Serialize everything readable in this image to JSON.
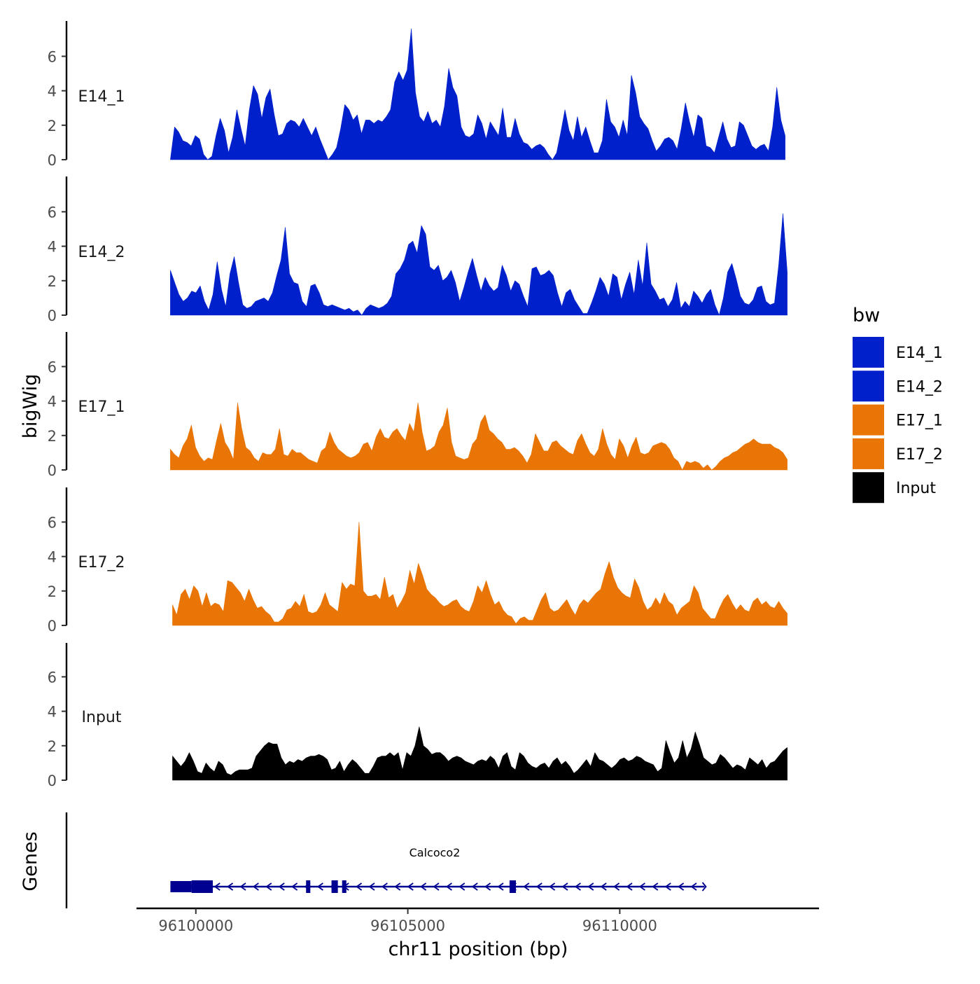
{
  "chart_data": {
    "type": "area",
    "title": "",
    "xlabel": "chr11 position (bp)",
    "ylabel": "bigWig",
    "genes_label": "Genes",
    "xlim": [
      96098600,
      96114700
    ],
    "ylim": [
      0,
      7.7
    ],
    "x_ticks": [
      {
        "value": 96100000,
        "label": "96100000"
      },
      {
        "value": 96105000,
        "label": "96105000"
      },
      {
        "value": 96110000,
        "label": "96110000"
      }
    ],
    "y_ticks": [
      {
        "value": 0,
        "label": "0"
      },
      {
        "value": 2,
        "label": "2"
      },
      {
        "value": 4,
        "label": "4"
      },
      {
        "value": 6,
        "label": "6"
      }
    ],
    "legend": {
      "title": "bw",
      "entries": [
        {
          "label": "E14_1",
          "color": "#0020cc"
        },
        {
          "label": "E14_2",
          "color": "#0020cc"
        },
        {
          "label": "E17_1",
          "color": "#e87505"
        },
        {
          "label": "E17_2",
          "color": "#e87505"
        },
        {
          "label": "Input",
          "color": "#000000"
        }
      ]
    },
    "series": [
      {
        "name": "E14_1",
        "color": "#0020cc",
        "x_start": 96099400,
        "x_end": 96113900,
        "values": [
          0.0,
          1.9,
          1.6,
          1.1,
          1.0,
          0.8,
          1.4,
          1.2,
          0.3,
          0.0,
          0.2,
          1.4,
          2.4,
          1.7,
          0.4,
          1.3,
          2.9,
          1.8,
          0.8,
          2.9,
          4.3,
          3.8,
          2.4,
          3.6,
          4.1,
          2.6,
          1.4,
          1.5,
          2.1,
          2.3,
          2.2,
          1.9,
          2.4,
          1.9,
          1.4,
          1.9,
          1.2,
          0.6,
          0.0,
          0.3,
          0.7,
          1.8,
          3.2,
          2.9,
          2.3,
          2.6,
          1.5,
          2.3,
          2.3,
          2.1,
          2.3,
          2.2,
          2.5,
          2.9,
          4.5,
          5.1,
          4.6,
          5.2,
          7.6,
          3.9,
          2.5,
          2.2,
          2.8,
          2.1,
          2.3,
          1.9,
          3.1,
          5.3,
          4.2,
          3.7,
          1.9,
          1.4,
          1.3,
          1.5,
          2.6,
          2.1,
          1.2,
          2.2,
          1.8,
          1.4,
          3.0,
          1.3,
          1.3,
          2.4,
          1.5,
          1.0,
          0.9,
          0.6,
          0.8,
          0.9,
          0.7,
          0.3,
          0.0,
          0.4,
          1.6,
          2.9,
          1.7,
          1.1,
          2.5,
          1.3,
          1.9,
          1.1,
          0.4,
          0.4,
          1.1,
          3.5,
          2.2,
          1.9,
          1.3,
          2.3,
          1.4,
          4.9,
          3.9,
          2.5,
          2.1,
          1.8,
          1.1,
          0.5,
          0.8,
          1.2,
          1.3,
          1.1,
          0.6,
          1.8,
          3.3,
          2.2,
          1.3,
          2.6,
          2.4,
          0.8,
          0.7,
          0.4,
          1.3,
          2.2,
          1.2,
          0.7,
          0.8,
          2.2,
          2.0,
          1.4,
          0.8,
          0.6,
          0.8,
          0.9,
          0.5,
          1.9,
          4.2,
          2.3,
          1.4
        ]
      },
      {
        "name": "E14_2",
        "color": "#0020cc",
        "x_start": 96099400,
        "x_end": 96113950,
        "values": [
          2.6,
          1.9,
          1.2,
          0.8,
          1.0,
          1.4,
          1.3,
          1.7,
          0.8,
          0.3,
          1.2,
          3.1,
          1.5,
          0.5,
          2.4,
          3.4,
          1.9,
          0.6,
          0.4,
          0.5,
          0.8,
          0.9,
          1.0,
          0.8,
          1.3,
          2.3,
          3.2,
          5.1,
          2.4,
          1.9,
          1.8,
          0.8,
          0.5,
          1.7,
          1.8,
          1.3,
          0.6,
          0.5,
          0.6,
          0.5,
          0.4,
          0.3,
          0.4,
          0.2,
          0.3,
          0.0,
          0.4,
          0.6,
          0.5,
          0.4,
          0.5,
          0.7,
          1.1,
          2.4,
          2.7,
          3.2,
          4.1,
          4.3,
          3.6,
          5.2,
          4.7,
          2.8,
          2.6,
          2.9,
          2.0,
          2.2,
          2.6,
          1.9,
          0.8,
          1.6,
          2.5,
          3.3,
          2.3,
          1.4,
          2.2,
          1.7,
          1.4,
          1.6,
          2.9,
          2.3,
          1.4,
          2.0,
          1.8,
          1.1,
          0.5,
          2.7,
          2.8,
          2.3,
          2.4,
          2.6,
          2.3,
          1.3,
          0.5,
          1.3,
          1.5,
          0.9,
          0.5,
          0.1,
          0.1,
          0.7,
          1.4,
          2.2,
          1.8,
          1.1,
          2.4,
          2.2,
          0.9,
          1.8,
          2.5,
          1.2,
          3.2,
          1.7,
          4.2,
          1.8,
          1.4,
          0.9,
          1.0,
          0.5,
          0.9,
          1.9,
          0.4,
          0.8,
          0.5,
          1.4,
          1.1,
          0.7,
          1.2,
          1.5,
          0.6,
          0.0,
          1.0,
          2.5,
          3.0,
          2.1,
          1.1,
          0.7,
          0.6,
          0.9,
          1.6,
          1.7,
          0.8,
          0.6,
          0.7,
          2.9,
          5.9,
          2.5
        ]
      },
      {
        "name": "E17_1",
        "color": "#e87505",
        "x_start": 96099400,
        "x_end": 96113950,
        "values": [
          1.2,
          0.9,
          0.7,
          1.4,
          1.8,
          2.6,
          1.3,
          0.8,
          0.5,
          0.7,
          0.6,
          1.7,
          2.7,
          1.6,
          1.2,
          0.6,
          3.9,
          2.4,
          1.3,
          1.1,
          0.7,
          0.5,
          1.0,
          0.9,
          0.9,
          1.2,
          2.4,
          0.9,
          0.8,
          1.2,
          1.0,
          1.0,
          0.8,
          0.6,
          0.5,
          0.4,
          1.1,
          1.3,
          2.2,
          1.6,
          1.2,
          1.0,
          0.8,
          0.7,
          0.8,
          1.0,
          1.5,
          1.6,
          1.1,
          1.9,
          2.4,
          1.9,
          1.8,
          2.2,
          2.4,
          2.0,
          1.7,
          2.7,
          2.2,
          3.9,
          2.2,
          1.1,
          1.2,
          1.4,
          2.2,
          2.6,
          3.6,
          1.6,
          0.8,
          0.7,
          0.6,
          0.7,
          1.5,
          1.8,
          2.8,
          3.2,
          2.3,
          2.1,
          1.8,
          1.6,
          1.2,
          1.2,
          1.3,
          1.1,
          0.8,
          0.4,
          0.9,
          2.1,
          1.6,
          1.1,
          1.1,
          1.6,
          1.7,
          1.4,
          1.2,
          1.0,
          0.9,
          1.7,
          2.1,
          1.5,
          1.0,
          0.8,
          1.2,
          2.4,
          1.5,
          0.9,
          0.6,
          1.8,
          1.4,
          0.7,
          1.4,
          1.9,
          1.0,
          0.9,
          1.0,
          1.4,
          1.5,
          1.6,
          1.5,
          1.2,
          0.7,
          0.5,
          0.0,
          0.5,
          0.4,
          0.5,
          0.4,
          0.1,
          0.3,
          0.0,
          0.2,
          0.5,
          0.7,
          0.8,
          1.0,
          1.1,
          1.3,
          1.5,
          1.6,
          1.8,
          1.6,
          1.5,
          1.5,
          1.5,
          1.3,
          1.2,
          1.0,
          0.6
        ]
      },
      {
        "name": "E17_2",
        "color": "#e87505",
        "x_start": 96099450,
        "x_end": 96113950,
        "values": [
          1.2,
          0.6,
          1.8,
          2.1,
          1.5,
          2.3,
          2.0,
          1.1,
          1.9,
          1.1,
          1.3,
          1.2,
          0.8,
          2.6,
          2.5,
          2.2,
          1.9,
          1.4,
          2.1,
          1.5,
          1.0,
          1.1,
          0.8,
          0.6,
          0.2,
          0.2,
          0.4,
          0.9,
          1.0,
          1.4,
          1.1,
          1.8,
          0.8,
          0.7,
          0.8,
          1.2,
          1.9,
          1.2,
          1.0,
          0.8,
          2.5,
          2.1,
          2.4,
          2.3,
          6.0,
          2.0,
          1.7,
          1.7,
          1.8,
          1.5,
          2.8,
          1.6,
          1.8,
          1.0,
          1.4,
          1.9,
          3.2,
          2.4,
          3.6,
          2.9,
          2.1,
          1.8,
          1.6,
          1.3,
          1.1,
          1.2,
          1.4,
          1.5,
          1.1,
          0.9,
          0.8,
          1.4,
          2.3,
          1.9,
          2.6,
          1.8,
          1.2,
          1.4,
          0.9,
          0.6,
          0.5,
          0.1,
          0.4,
          0.5,
          0.3,
          0.3,
          0.9,
          1.5,
          1.9,
          1.0,
          0.8,
          0.9,
          1.2,
          1.5,
          1.0,
          0.6,
          1.2,
          1.5,
          1.3,
          1.6,
          1.9,
          2.1,
          3.0,
          3.7,
          2.8,
          2.2,
          1.9,
          1.7,
          1.6,
          2.7,
          2.2,
          1.4,
          0.9,
          1.1,
          1.6,
          1.2,
          1.9,
          1.4,
          1.2,
          0.6,
          1.0,
          1.2,
          1.4,
          2.3,
          1.9,
          1.0,
          0.7,
          0.4,
          0.4,
          1.0,
          1.5,
          1.8,
          1.3,
          0.9,
          1.2,
          0.9,
          0.8,
          1.4,
          1.6,
          1.2,
          1.4,
          1.1,
          1.0,
          1.4,
          1.0,
          0.7
        ]
      },
      {
        "name": "Input",
        "color": "#000000",
        "x_start": 96099450,
        "x_end": 96113950,
        "values": [
          1.4,
          1.1,
          0.8,
          1.1,
          1.6,
          1.1,
          0.5,
          0.4,
          1.0,
          0.7,
          0.5,
          1.1,
          0.9,
          0.4,
          0.3,
          0.5,
          0.6,
          0.6,
          0.6,
          0.7,
          1.4,
          1.7,
          2.0,
          2.2,
          2.1,
          2.1,
          1.3,
          0.9,
          1.1,
          1.0,
          1.2,
          1.1,
          1.3,
          1.4,
          1.4,
          1.5,
          1.4,
          1.2,
          0.6,
          0.7,
          1.1,
          0.5,
          0.9,
          1.2,
          1.0,
          0.7,
          0.4,
          0.4,
          0.8,
          1.3,
          1.4,
          1.4,
          1.6,
          1.4,
          1.6,
          0.6,
          1.6,
          1.4,
          2.0,
          3.1,
          2.0,
          1.8,
          1.5,
          1.6,
          1.6,
          1.4,
          1.1,
          1.3,
          1.4,
          1.3,
          1.1,
          1.0,
          0.9,
          1.1,
          1.2,
          1.1,
          1.4,
          1.2,
          0.7,
          1.4,
          1.6,
          0.8,
          0.6,
          1.6,
          1.4,
          1.0,
          0.8,
          0.7,
          0.9,
          1.0,
          0.7,
          1.1,
          1.3,
          0.9,
          1.1,
          0.8,
          0.4,
          0.6,
          0.9,
          1.2,
          0.8,
          1.6,
          1.2,
          1.1,
          0.9,
          0.7,
          0.9,
          1.2,
          1.3,
          1.1,
          1.2,
          1.4,
          1.3,
          1.1,
          1.0,
          0.9,
          0.5,
          0.7,
          2.3,
          1.6,
          1.0,
          1.3,
          2.3,
          1.3,
          1.8,
          2.8,
          2.1,
          1.3,
          1.1,
          0.9,
          1.0,
          1.5,
          1.3,
          1.0,
          0.7,
          0.9,
          0.8,
          0.6,
          1.3,
          1.1,
          0.9,
          1.2,
          0.7,
          1.0,
          1.1,
          1.4,
          1.7,
          1.9
        ]
      }
    ],
    "gene": {
      "name": "Calcoco2",
      "strand": "-",
      "start": 96099400,
      "end": 96112000,
      "color": "#000090",
      "utr_blocks": [
        [
          96099400,
          96099900
        ]
      ],
      "exons": [
        [
          96099900,
          96100400
        ],
        [
          96102600,
          96102700
        ],
        [
          96103200,
          96103350
        ],
        [
          96103450,
          96103550
        ],
        [
          96107400,
          96107550
        ]
      ]
    }
  }
}
